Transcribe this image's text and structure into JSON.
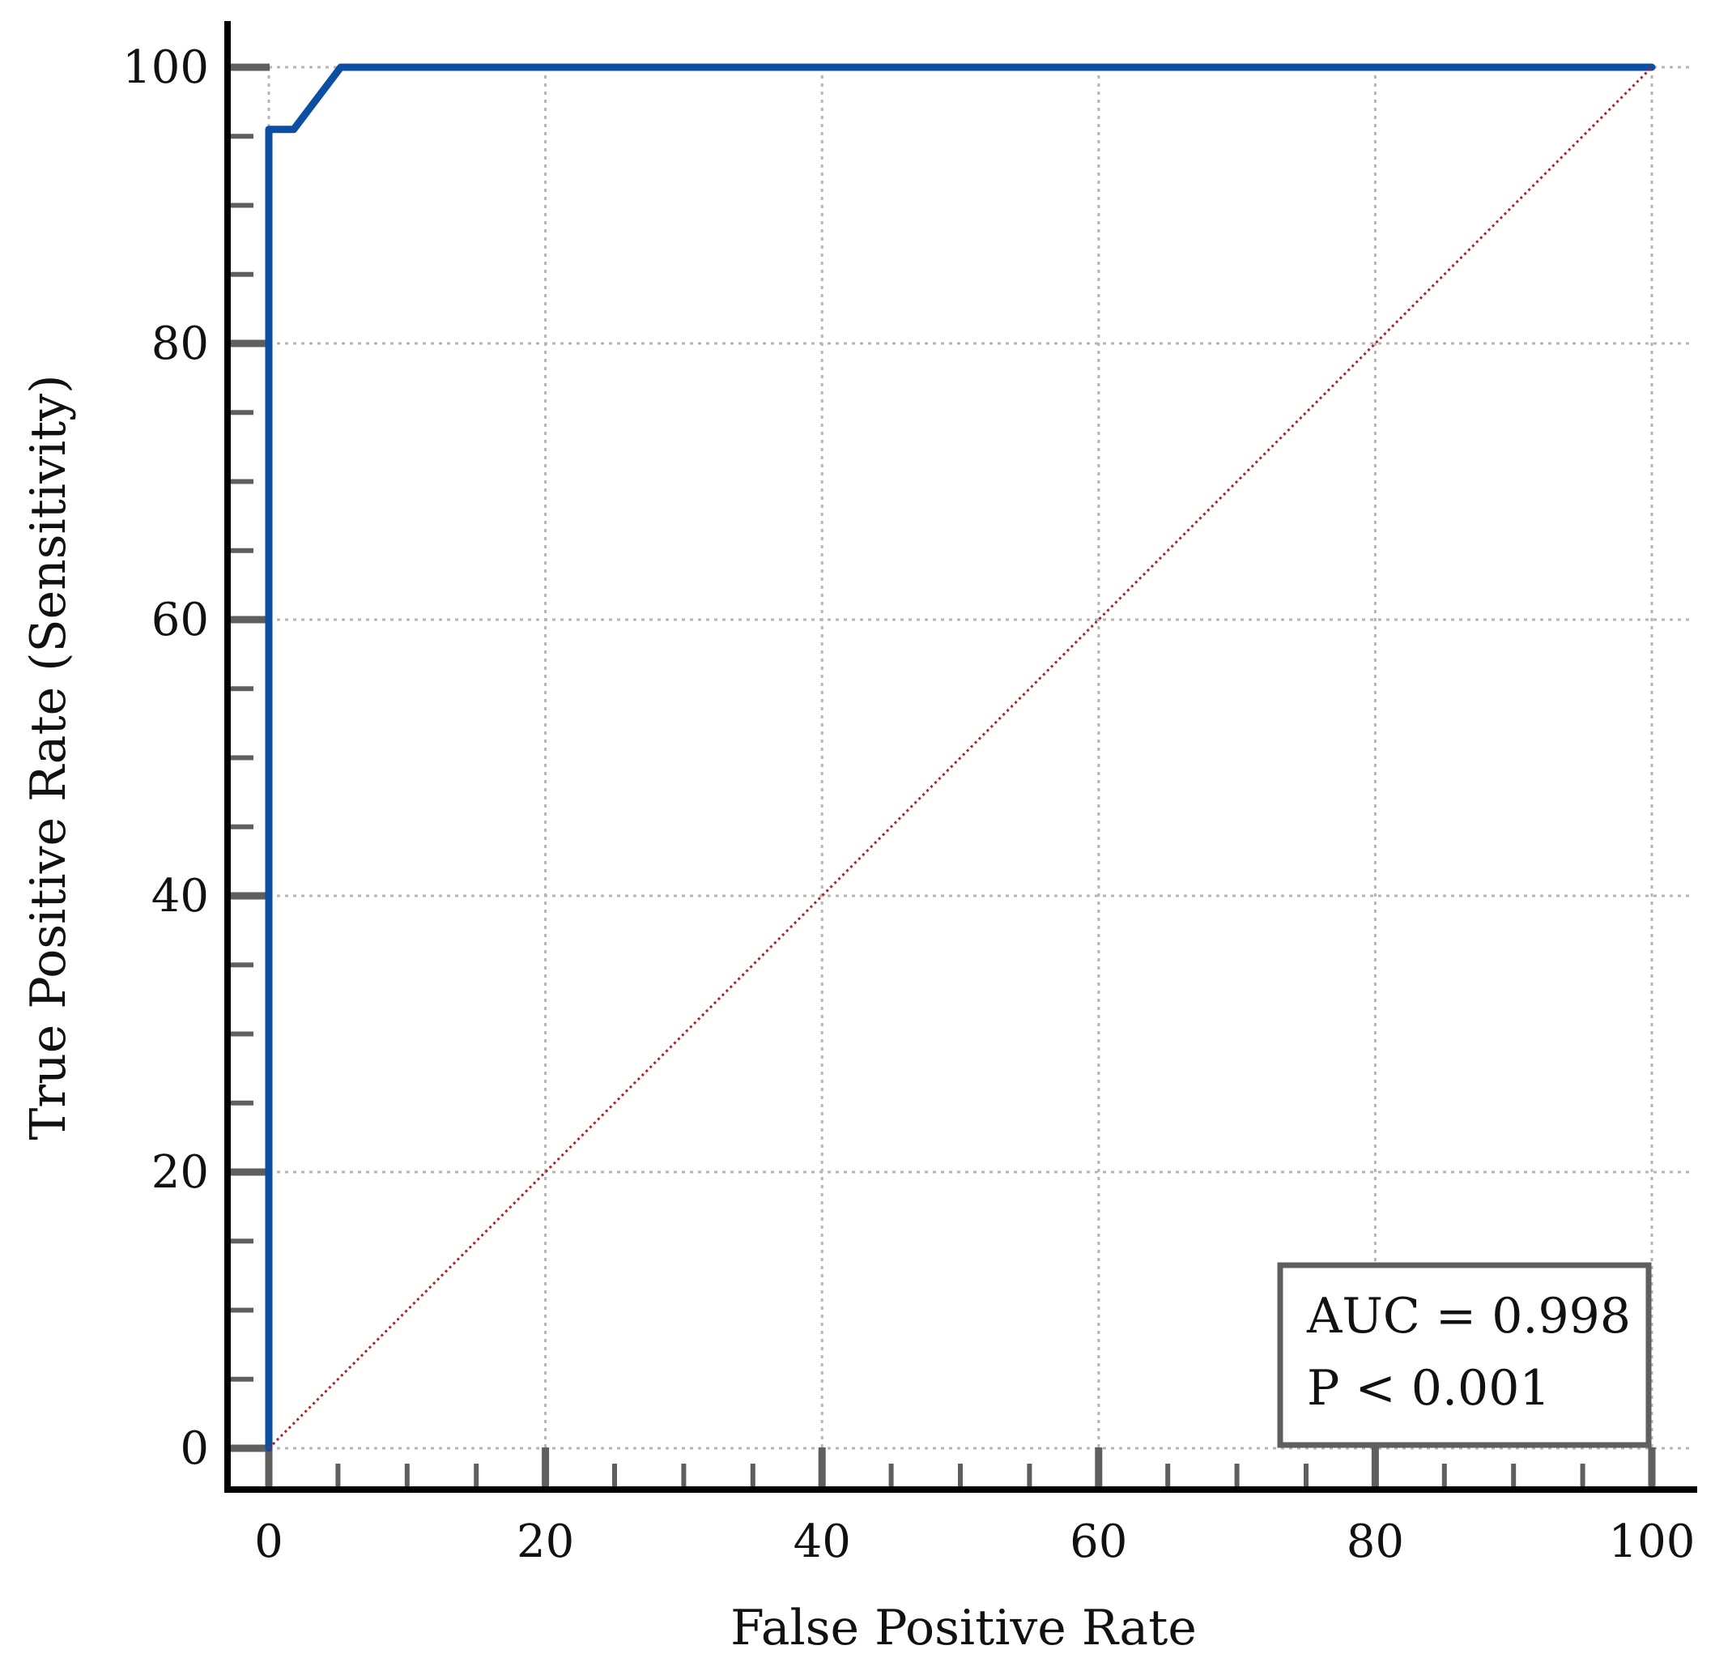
{
  "chart_data": {
    "type": "line",
    "title": "",
    "xlabel": "False Positive Rate",
    "ylabel": "True Positive Rate (Sensitivity)",
    "xlim": [
      0,
      100
    ],
    "ylim": [
      0,
      100
    ],
    "xticks": [
      "0",
      "20",
      "40",
      "60",
      "80",
      "100"
    ],
    "yticks": [
      "0",
      "20",
      "40",
      "60",
      "80",
      "100"
    ],
    "grid": true,
    "series": [
      {
        "x": [
          0,
          0,
          1.8,
          5.2,
          100
        ],
        "y": [
          0,
          95.5,
          95.5,
          100,
          100
        ],
        "color": "#0b4ea2"
      },
      {
        "x": [
          0,
          100
        ],
        "y": [
          0,
          100
        ],
        "color": "#b22222",
        "style": "dotted"
      }
    ],
    "annotation": {
      "lines": [
        "AUC = 0.998",
        "P < 0.001"
      ],
      "position": "bottom-right"
    }
  }
}
